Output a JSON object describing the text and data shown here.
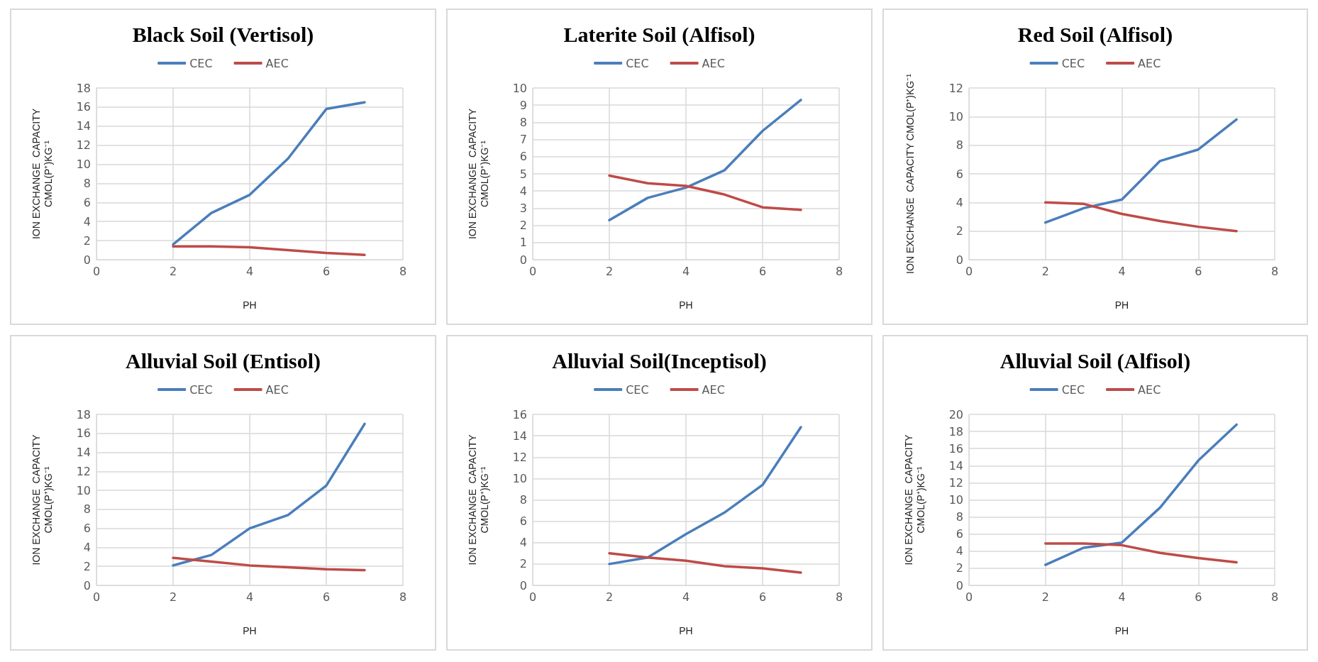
{
  "chart_data": [
    {
      "type": "line",
      "title": "Black Soil (Vertisol)",
      "xlabel": "PH",
      "ylabel": "ION EXCHANGE  CAPACITY\nCMOL(P⁺)KG⁻¹",
      "x": [
        2,
        3,
        4,
        5,
        6,
        7
      ],
      "xlim": [
        0,
        8
      ],
      "xticks": [
        0,
        2,
        4,
        6,
        8
      ],
      "ylim": [
        0,
        18
      ],
      "yticks": [
        0,
        2,
        4,
        6,
        8,
        10,
        12,
        14,
        16,
        18
      ],
      "grid": true,
      "legend": "top",
      "marker": "none",
      "line_style": "solid",
      "series": [
        {
          "name": "CEC",
          "color": "#4a7ebb",
          "values": [
            1.6,
            4.9,
            6.8,
            10.6,
            15.8,
            16.5
          ]
        },
        {
          "name": "AEC",
          "color": "#be4b48",
          "values": [
            1.4,
            1.4,
            1.3,
            1.0,
            0.7,
            0.5
          ]
        }
      ]
    },
    {
      "type": "line",
      "title": "Laterite Soil (Alfisol)",
      "xlabel": "PH",
      "ylabel": "ION EXCHANGE  CAPACITY\nCMOL(P⁺)KG⁻¹",
      "x": [
        2,
        3,
        4,
        5,
        6,
        7
      ],
      "xlim": [
        0,
        8
      ],
      "xticks": [
        0,
        2,
        4,
        6,
        8
      ],
      "ylim": [
        0,
        10
      ],
      "yticks": [
        0,
        1,
        2,
        3,
        4,
        5,
        6,
        7,
        8,
        9,
        10
      ],
      "grid": true,
      "legend": "top",
      "marker": "none",
      "line_style": "solid",
      "series": [
        {
          "name": "CEC",
          "color": "#4a7ebb",
          "values": [
            2.3,
            3.6,
            4.2,
            5.2,
            7.5,
            9.3
          ]
        },
        {
          "name": "AEC",
          "color": "#be4b48",
          "values": [
            4.9,
            4.45,
            4.3,
            3.8,
            3.05,
            2.9
          ]
        }
      ]
    },
    {
      "type": "line",
      "title": "Red Soil (Alfisol)",
      "xlabel": "PH",
      "ylabel": "ION EXCHANGE  CAPACITY CMOL(P⁺)KG⁻¹",
      "x": [
        2,
        3,
        4,
        5,
        6,
        7
      ],
      "xlim": [
        0,
        8
      ],
      "xticks": [
        0,
        2,
        4,
        6,
        8
      ],
      "ylim": [
        0,
        12
      ],
      "yticks": [
        0,
        2,
        4,
        6,
        8,
        10,
        12
      ],
      "grid": true,
      "legend": "top",
      "marker": "none",
      "line_style": "solid",
      "series": [
        {
          "name": "CEC",
          "color": "#4a7ebb",
          "values": [
            2.6,
            3.6,
            4.2,
            6.9,
            7.7,
            9.8
          ]
        },
        {
          "name": "AEC",
          "color": "#be4b48",
          "values": [
            4.0,
            3.9,
            3.2,
            2.7,
            2.3,
            2.0
          ]
        }
      ]
    },
    {
      "type": "line",
      "title": "Alluvial Soil (Entisol)",
      "xlabel": "PH",
      "ylabel": "ION EXCHANGE  CAPACITY\nCMOL(P⁺)KG⁻¹",
      "x": [
        2,
        3,
        4,
        5,
        6,
        7
      ],
      "xlim": [
        0,
        8
      ],
      "xticks": [
        0,
        2,
        4,
        6,
        8
      ],
      "ylim": [
        0,
        18
      ],
      "yticks": [
        0,
        2,
        4,
        6,
        8,
        10,
        12,
        14,
        16,
        18
      ],
      "grid": true,
      "legend": "top",
      "marker": "none",
      "line_style": "solid",
      "series": [
        {
          "name": "CEC",
          "color": "#4a7ebb",
          "values": [
            2.1,
            3.2,
            6.0,
            7.4,
            10.5,
            17.0
          ]
        },
        {
          "name": "AEC",
          "color": "#be4b48",
          "values": [
            2.9,
            2.5,
            2.1,
            1.9,
            1.7,
            1.6
          ]
        }
      ]
    },
    {
      "type": "line",
      "title": "Alluvial Soil(Inceptisol)",
      "xlabel": "PH",
      "ylabel": "ION EXCHANGE  CAPACITY\nCMOL(P⁺)KG⁻¹",
      "x": [
        2,
        3,
        4,
        5,
        6,
        7
      ],
      "xlim": [
        0,
        8
      ],
      "xticks": [
        0,
        2,
        4,
        6,
        8
      ],
      "ylim": [
        0,
        16
      ],
      "yticks": [
        0,
        2,
        4,
        6,
        8,
        10,
        12,
        14,
        16
      ],
      "grid": true,
      "legend": "top",
      "marker": "none",
      "line_style": "solid",
      "series": [
        {
          "name": "CEC",
          "color": "#4a7ebb",
          "values": [
            2.0,
            2.6,
            4.8,
            6.8,
            9.4,
            14.8
          ]
        },
        {
          "name": "AEC",
          "color": "#be4b48",
          "values": [
            3.0,
            2.6,
            2.3,
            1.8,
            1.6,
            1.2
          ]
        }
      ]
    },
    {
      "type": "line",
      "title": "Alluvial Soil (Alfisol)",
      "xlabel": "PH",
      "ylabel": "ION EXCHANGE  CAPACITY\nCMOL(P⁺)KG⁻¹",
      "x": [
        2,
        3,
        4,
        5,
        6,
        7
      ],
      "xlim": [
        0,
        8
      ],
      "xticks": [
        0,
        2,
        4,
        6,
        8
      ],
      "ylim": [
        0,
        20
      ],
      "yticks": [
        0,
        2,
        4,
        6,
        8,
        10,
        12,
        14,
        16,
        18,
        20
      ],
      "grid": true,
      "legend": "top",
      "marker": "none",
      "line_style": "solid",
      "series": [
        {
          "name": "CEC",
          "color": "#4a7ebb",
          "values": [
            2.4,
            4.4,
            5.0,
            9.1,
            14.6,
            18.8
          ]
        },
        {
          "name": "AEC",
          "color": "#be4b48",
          "values": [
            4.9,
            4.9,
            4.7,
            3.8,
            3.2,
            2.7
          ]
        }
      ]
    }
  ]
}
